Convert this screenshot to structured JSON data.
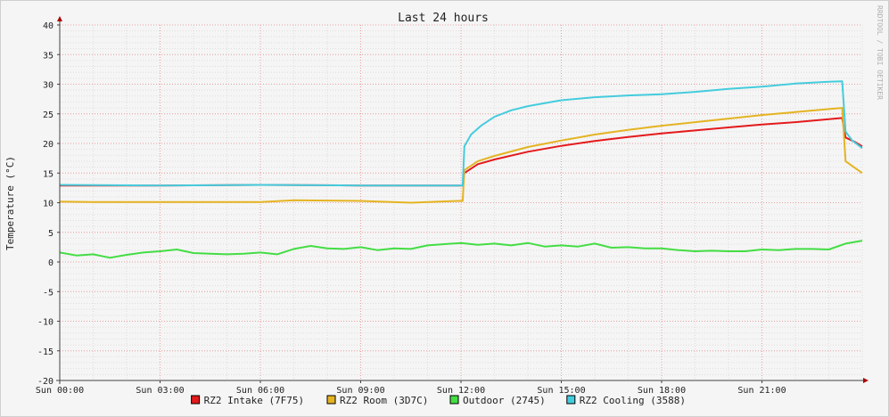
{
  "chart_data": {
    "type": "line",
    "title": "Last 24 hours",
    "ylabel": "Temperature (°C)",
    "xlabel": "",
    "watermark": "RRDTOOL / TOBI OETIKER",
    "xlim": [
      0,
      24
    ],
    "ylim": [
      -20,
      40
    ],
    "yticks": [
      -20,
      -15,
      -10,
      -5,
      0,
      5,
      10,
      15,
      20,
      25,
      30,
      35,
      40
    ],
    "xticks": [
      {
        "t": 0,
        "label": "Sun 00:00"
      },
      {
        "t": 3,
        "label": "Sun 03:00"
      },
      {
        "t": 6,
        "label": "Sun 06:00"
      },
      {
        "t": 9,
        "label": "Sun 09:00"
      },
      {
        "t": 12,
        "label": "Sun 12:00"
      },
      {
        "t": 15,
        "label": "Sun 15:00"
      },
      {
        "t": 18,
        "label": "Sun 18:00"
      },
      {
        "t": 21,
        "label": "Sun 21:00"
      }
    ],
    "grid": true,
    "legend_position": "bottom",
    "series": [
      {
        "name": "RZ2 Intake (7F75)",
        "color": "#e41a1c",
        "x": [
          0,
          3,
          6,
          9,
          11.9,
          12.05,
          12.1,
          12.5,
          13,
          14,
          15,
          16,
          17,
          18,
          19,
          20,
          21,
          22,
          23,
          23.4,
          23.5,
          23.8,
          24
        ],
        "y": [
          12.9,
          12.9,
          13,
          12.9,
          12.9,
          12.9,
          15,
          16.5,
          17.3,
          18.6,
          19.6,
          20.4,
          21.1,
          21.7,
          22.2,
          22.7,
          23.2,
          23.6,
          24.1,
          24.3,
          21,
          20.2,
          19.5
        ]
      },
      {
        "name": "RZ2 Room (3D7C)",
        "color": "#e4b422",
        "x": [
          0,
          1,
          3,
          6,
          7,
          9,
          10.5,
          11.9,
          12.05,
          12.1,
          12.5,
          13,
          14,
          15,
          16,
          17,
          18,
          19,
          20,
          21,
          22,
          23,
          23.4,
          23.5,
          23.8,
          24
        ],
        "y": [
          10.2,
          10.1,
          10.1,
          10.1,
          10.4,
          10.3,
          10,
          10.3,
          10.3,
          15.5,
          17,
          17.9,
          19.4,
          20.5,
          21.5,
          22.3,
          23,
          23.6,
          24.2,
          24.8,
          25.3,
          25.8,
          26,
          17,
          15.8,
          15
        ]
      },
      {
        "name": "Outdoor (2745)",
        "color": "#44dd44",
        "x": [
          0,
          0.5,
          1,
          1.5,
          2,
          2.5,
          3,
          3.5,
          4,
          4.5,
          5,
          5.5,
          6,
          6.5,
          7,
          7.5,
          8,
          8.5,
          9,
          9.5,
          10,
          10.5,
          11,
          11.5,
          12,
          12.5,
          13,
          13.5,
          14,
          14.5,
          15,
          15.5,
          16,
          16.5,
          17,
          17.5,
          18,
          18.5,
          19,
          19.5,
          20,
          20.5,
          21,
          21.5,
          22,
          22.5,
          23,
          23.5,
          24
        ],
        "y": [
          1.6,
          1.1,
          1.3,
          0.7,
          1.2,
          1.6,
          1.8,
          2.1,
          1.5,
          1.4,
          1.3,
          1.4,
          1.6,
          1.3,
          2.2,
          2.7,
          2.3,
          2.2,
          2.5,
          2,
          2.3,
          2.2,
          2.8,
          3,
          3.2,
          2.9,
          3.1,
          2.8,
          3.2,
          2.6,
          2.8,
          2.6,
          3.1,
          2.4,
          2.5,
          2.3,
          2.3,
          2,
          1.8,
          1.9,
          1.8,
          1.8,
          2.1,
          2,
          2.2,
          2.2,
          2.1,
          3.1,
          3.6
        ]
      },
      {
        "name": "RZ2 Cooling (3588)",
        "color": "#44ccdd",
        "x": [
          0,
          3,
          6,
          9,
          11.9,
          12.05,
          12.1,
          12.3,
          12.6,
          13,
          13.5,
          14,
          15,
          16,
          17,
          18,
          19,
          20,
          21,
          22,
          23,
          23.4,
          23.5,
          23.7,
          24
        ],
        "y": [
          13,
          12.9,
          13,
          12.9,
          12.9,
          12.9,
          19.5,
          21.5,
          23,
          24.5,
          25.6,
          26.3,
          27.3,
          27.8,
          28.1,
          28.3,
          28.7,
          29.2,
          29.6,
          30.1,
          30.4,
          30.5,
          22,
          20.5,
          19.2
        ]
      }
    ]
  }
}
